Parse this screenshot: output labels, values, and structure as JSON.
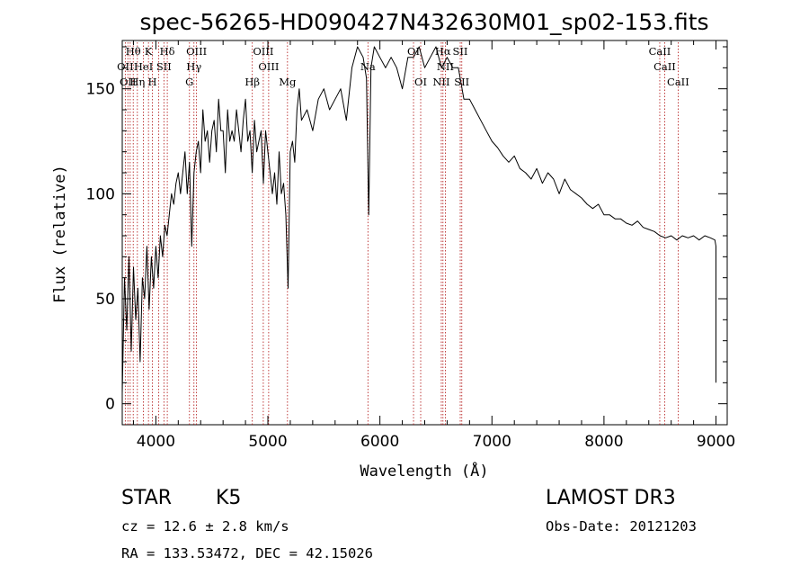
{
  "chart_data": {
    "type": "line",
    "title": "spec-56265-HD090427N432630M01_sp02-153.fits",
    "xlabel": "Wavelength (Å)",
    "ylabel": "Flux (relative)",
    "xlim": [
      3700,
      9100
    ],
    "ylim": [
      -10,
      173
    ],
    "xticks": [
      4000,
      5000,
      6000,
      7000,
      8000,
      9000
    ],
    "yticks": [
      0,
      50,
      100,
      150
    ],
    "series": [
      {
        "name": "flux",
        "x": [
          3700,
          3720,
          3740,
          3760,
          3780,
          3800,
          3820,
          3840,
          3860,
          3880,
          3900,
          3920,
          3940,
          3960,
          3980,
          4000,
          4020,
          4040,
          4060,
          4080,
          4100,
          4120,
          4140,
          4160,
          4180,
          4200,
          4220,
          4240,
          4260,
          4280,
          4300,
          4320,
          4340,
          4360,
          4380,
          4400,
          4420,
          4440,
          4460,
          4480,
          4500,
          4520,
          4540,
          4560,
          4580,
          4600,
          4620,
          4640,
          4660,
          4680,
          4700,
          4720,
          4740,
          4760,
          4780,
          4800,
          4820,
          4840,
          4860,
          4880,
          4900,
          4920,
          4940,
          4960,
          4980,
          5000,
          5020,
          5040,
          5060,
          5080,
          5100,
          5120,
          5140,
          5160,
          5180,
          5200,
          5220,
          5240,
          5260,
          5280,
          5300,
          5350,
          5400,
          5450,
          5500,
          5550,
          5600,
          5650,
          5700,
          5750,
          5800,
          5850,
          5880,
          5900,
          5920,
          5950,
          6000,
          6050,
          6100,
          6150,
          6200,
          6250,
          6300,
          6350,
          6400,
          6450,
          6500,
          6550,
          6600,
          6650,
          6700,
          6750,
          6800,
          6850,
          6900,
          6950,
          7000,
          7050,
          7100,
          7150,
          7200,
          7250,
          7300,
          7350,
          7400,
          7450,
          7500,
          7550,
          7600,
          7650,
          7700,
          7750,
          7800,
          7850,
          7900,
          7950,
          8000,
          8050,
          8100,
          8150,
          8200,
          8250,
          8300,
          8350,
          8400,
          8450,
          8500,
          8550,
          8600,
          8650,
          8700,
          8750,
          8800,
          8850,
          8900,
          8950,
          8990,
          9000,
          9000
        ],
        "y": [
          5,
          60,
          35,
          70,
          25,
          65,
          40,
          55,
          20,
          60,
          50,
          75,
          45,
          70,
          55,
          75,
          60,
          80,
          70,
          85,
          80,
          90,
          100,
          95,
          105,
          110,
          100,
          110,
          120,
          100,
          115,
          75,
          110,
          120,
          125,
          110,
          140,
          125,
          130,
          115,
          130,
          135,
          120,
          145,
          130,
          130,
          110,
          140,
          125,
          130,
          125,
          140,
          130,
          120,
          135,
          145,
          125,
          130,
          110,
          135,
          120,
          125,
          130,
          105,
          130,
          120,
          110,
          100,
          110,
          95,
          120,
          100,
          105,
          90,
          55,
          120,
          125,
          115,
          140,
          150,
          135,
          140,
          130,
          145,
          150,
          140,
          145,
          150,
          135,
          160,
          170,
          165,
          155,
          90,
          160,
          170,
          165,
          160,
          165,
          160,
          150,
          165,
          165,
          170,
          160,
          165,
          170,
          160,
          165,
          160,
          160,
          145,
          145,
          140,
          135,
          130,
          125,
          122,
          118,
          115,
          118,
          112,
          110,
          107,
          112,
          105,
          110,
          107,
          100,
          107,
          102,
          100,
          98,
          95,
          93,
          95,
          90,
          90,
          88,
          88,
          86,
          85,
          87,
          84,
          83,
          82,
          80,
          79,
          80,
          78,
          80,
          79,
          80,
          78,
          80,
          79,
          78,
          75,
          10
        ]
      }
    ],
    "line_markers": {
      "wavelengths": [
        3727,
        3750,
        3771,
        3798,
        3835,
        3889,
        3934,
        3969,
        4026,
        4072,
        4102,
        4300,
        4340,
        4363,
        4861,
        4959,
        5007,
        5175,
        5893,
        6300,
        6364,
        6548,
        6563,
        6584,
        6717,
        6731,
        8498,
        8542,
        8662
      ],
      "label_rows": [
        [
          {
            "text": "Hθ",
            "wl": 3798
          },
          {
            "text": "K",
            "wl": 3934
          },
          {
            "text": "Hδ",
            "wl": 4102
          },
          {
            "text": "OIII",
            "wl": 4363
          },
          {
            "text": "OIII",
            "wl": 4959
          },
          {
            "text": "OI",
            "wl": 6300
          },
          {
            "text": "Hα",
            "wl": 6563
          },
          {
            "text": "SII",
            "wl": 6717
          },
          {
            "text": "CaII",
            "wl": 8498
          }
        ],
        [
          {
            "text": "OII",
            "wl": 3727
          },
          {
            "text": "HeI",
            "wl": 3889
          },
          {
            "text": "SII",
            "wl": 4072
          },
          {
            "text": "Hγ",
            "wl": 4340
          },
          {
            "text": "OIII",
            "wl": 5007
          },
          {
            "text": "Na",
            "wl": 5893
          },
          {
            "text": "NII",
            "wl": 6584
          },
          {
            "text": "CaII",
            "wl": 8542
          }
        ],
        [
          {
            "text": "OII",
            "wl": 3750
          },
          {
            "text": "Hη",
            "wl": 3835
          },
          {
            "text": "H",
            "wl": 3969
          },
          {
            "text": "G",
            "wl": 4300
          },
          {
            "text": "Hβ",
            "wl": 4861
          },
          {
            "text": "Mg",
            "wl": 5175
          },
          {
            "text": "OI",
            "wl": 6364
          },
          {
            "text": "NII",
            "wl": 6548
          },
          {
            "text": "SII",
            "wl": 6731
          },
          {
            "text": "CaII",
            "wl": 8662
          }
        ]
      ]
    }
  },
  "info": {
    "class": "STAR",
    "subclass": "K5",
    "cz": "cz = 12.6 ± 2.8 km/s",
    "coords": "RA = 133.53472, DEC =  42.15026",
    "survey": "LAMOST DR3",
    "obs_date": "Obs-Date: 20121203"
  }
}
